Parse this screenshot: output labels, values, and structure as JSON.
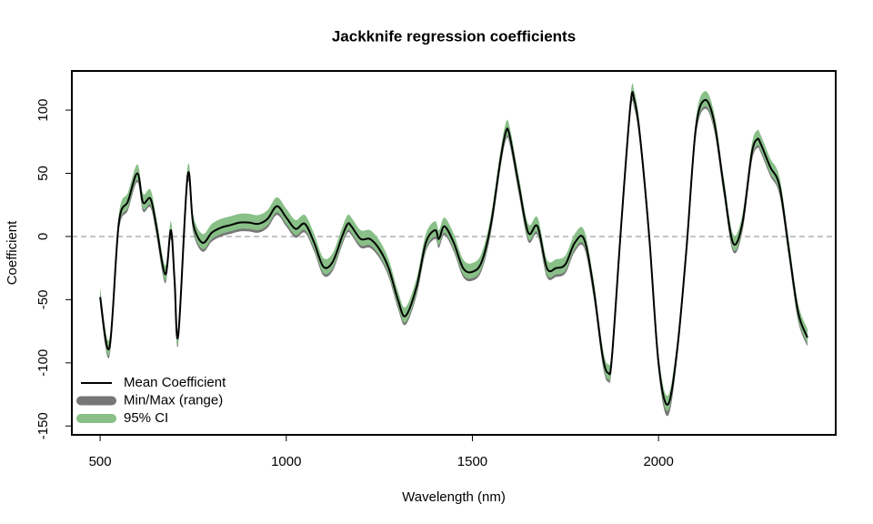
{
  "chart_data": {
    "type": "band-line",
    "title": "Jackknife regression coefficients",
    "xlabel": "Wavelength (nm)",
    "ylabel": "Coefficient",
    "xlim": [
      424,
      2476
    ],
    "ylim": [
      -157,
      131
    ],
    "xticks": [
      500,
      1000,
      1500,
      2000
    ],
    "yticks": [
      -150,
      -100,
      -50,
      0,
      50,
      100
    ],
    "hline": 0,
    "legend": "bottomleft",
    "x": [
      500,
      525,
      550,
      575,
      600,
      615,
      635,
      650,
      675,
      690,
      700,
      710,
      735,
      750,
      775,
      800,
      825,
      850,
      875,
      900,
      925,
      950,
      975,
      1000,
      1025,
      1050,
      1075,
      1100,
      1125,
      1150,
      1165,
      1175,
      1200,
      1225,
      1250,
      1275,
      1300,
      1320,
      1350,
      1375,
      1400,
      1410,
      1425,
      1450,
      1475,
      1500,
      1525,
      1550,
      1575,
      1590,
      1600,
      1625,
      1650,
      1675,
      1700,
      1725,
      1750,
      1775,
      1800,
      1825,
      1850,
      1865,
      1875,
      1900,
      1925,
      1935,
      1950,
      1975,
      2000,
      2025,
      2050,
      2075,
      2100,
      2125,
      2150,
      2175,
      2200,
      2225,
      2250,
      2265,
      2275,
      2300,
      2325,
      2350,
      2375,
      2400
    ],
    "series": [
      {
        "name": "Mean Coefficient",
        "color": "#000000",
        "values": [
          -48,
          -88,
          10,
          28,
          50,
          27,
          30,
          10,
          -30,
          5,
          -35,
          -78,
          48,
          10,
          -5,
          3,
          7,
          9,
          11,
          11,
          10,
          14,
          24,
          15,
          6,
          10,
          -5,
          -24,
          -20,
          0,
          10,
          8,
          -2,
          -2,
          -10,
          -25,
          -50,
          -63,
          -40,
          -5,
          5,
          -2,
          8,
          -5,
          -25,
          -28,
          -20,
          10,
          60,
          83,
          80,
          40,
          3,
          8,
          -25,
          -25,
          -22,
          -5,
          -2,
          -40,
          -95,
          -108,
          -95,
          10,
          105,
          108,
          80,
          0,
          -100,
          -133,
          -90,
          -10,
          85,
          108,
          90,
          40,
          -5,
          10,
          65,
          77,
          73,
          55,
          40,
          -10,
          -60,
          -80
        ]
      },
      {
        "name": "Min/Max (range)",
        "color": "#777777",
        "lower": [
          -55,
          -95,
          3,
          21,
          43,
          20,
          23,
          3,
          -37,
          -2,
          -42,
          -85,
          41,
          3,
          -12,
          -4,
          0,
          2,
          4,
          4,
          3,
          7,
          17,
          8,
          -1,
          3,
          -12,
          -31,
          -27,
          -7,
          3,
          1,
          -9,
          -9,
          -17,
          -32,
          -57,
          -70,
          -47,
          -12,
          -2,
          -9,
          1,
          -12,
          -32,
          -35,
          -27,
          3,
          53,
          76,
          73,
          33,
          -4,
          1,
          -32,
          -32,
          -29,
          -12,
          -9,
          -47,
          -102,
          -115,
          -102,
          3,
          98,
          101,
          73,
          -7,
          -107,
          -142,
          -97,
          -17,
          78,
          101,
          83,
          33,
          -12,
          3,
          58,
          70,
          66,
          48,
          33,
          -17,
          -67,
          -87
        ],
        "upper": [
          -42,
          -82,
          16,
          34,
          56,
          33,
          36,
          16,
          -24,
          11,
          -29,
          -72,
          54,
          16,
          1,
          9,
          13,
          15,
          17,
          17,
          16,
          20,
          30,
          21,
          12,
          16,
          1,
          -18,
          -14,
          6,
          16,
          14,
          4,
          4,
          -4,
          -19,
          -44,
          -57,
          -34,
          1,
          11,
          4,
          14,
          1,
          -19,
          -22,
          -14,
          16,
          66,
          89,
          86,
          46,
          9,
          14,
          -19,
          -19,
          -16,
          1,
          4,
          -34,
          -89,
          -102,
          -89,
          16,
          111,
          114,
          86,
          6,
          -94,
          -127,
          -84,
          -4,
          91,
          114,
          96,
          46,
          1,
          16,
          71,
          83,
          79,
          61,
          46,
          -4,
          -54,
          -74
        ]
      },
      {
        "name": "95% CI",
        "color": "#88c088",
        "lower": [
          -53,
          -93,
          5,
          23,
          45,
          22,
          25,
          5,
          -35,
          0,
          -40,
          -83,
          43,
          5,
          -10,
          -2,
          2,
          4,
          6,
          6,
          5,
          9,
          19,
          10,
          1,
          5,
          -10,
          -29,
          -25,
          -5,
          5,
          3,
          -7,
          -7,
          -15,
          -30,
          -55,
          -68,
          -45,
          -10,
          0,
          -7,
          3,
          -10,
          -30,
          -33,
          -25,
          5,
          55,
          78,
          75,
          35,
          -2,
          3,
          -30,
          -30,
          -27,
          -10,
          -7,
          -45,
          -100,
          -113,
          -100,
          5,
          100,
          103,
          75,
          -5,
          -105,
          -138,
          -95,
          -15,
          80,
          103,
          85,
          35,
          -10,
          5,
          60,
          72,
          68,
          50,
          35,
          -15,
          -65,
          -85
        ],
        "upper": [
          -41,
          -81,
          17,
          35,
          57,
          34,
          37,
          17,
          -23,
          12,
          -28,
          -71,
          55,
          17,
          2,
          10,
          14,
          16,
          18,
          18,
          17,
          21,
          31,
          22,
          13,
          17,
          2,
          -17,
          -13,
          7,
          17,
          15,
          5,
          5,
          -3,
          -18,
          -43,
          -56,
          -33,
          2,
          12,
          5,
          15,
          2,
          -18,
          -21,
          -13,
          17,
          67,
          90,
          87,
          47,
          10,
          15,
          -18,
          -18,
          -15,
          2,
          5,
          -33,
          -88,
          -101,
          -88,
          17,
          112,
          115,
          87,
          7,
          -93,
          -126,
          -83,
          -3,
          92,
          115,
          97,
          47,
          2,
          17,
          72,
          84,
          80,
          62,
          47,
          -3,
          -53,
          -73
        ]
      }
    ]
  }
}
